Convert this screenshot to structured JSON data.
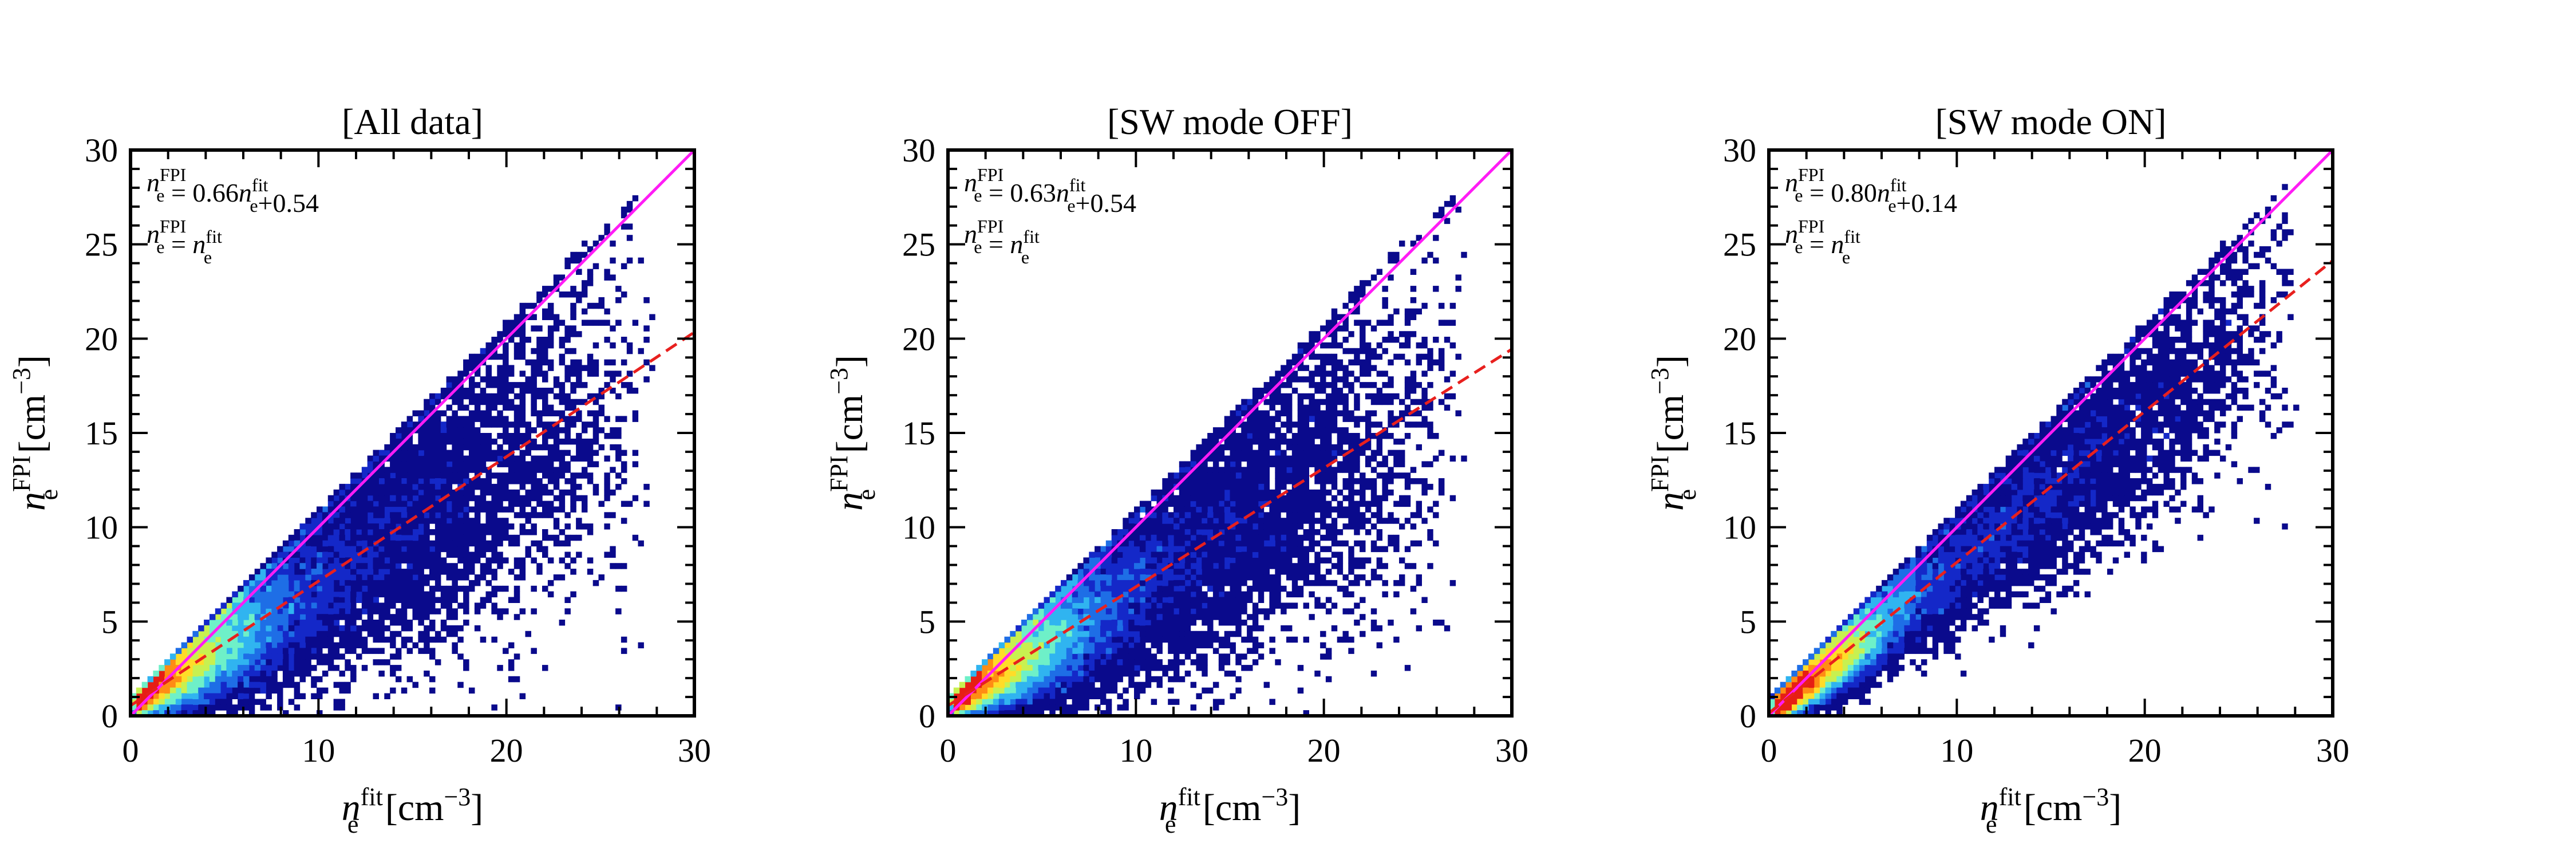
{
  "figure": {
    "xlabel": {
      "base": "n",
      "sub": "e",
      "sup": "fit",
      "unit_open": " [cm",
      "unit_exp": "−3",
      "unit_close": "]"
    },
    "ylabel": {
      "base": "n",
      "sub": "e",
      "sup": "FPI",
      "unit_open": " [cm",
      "unit_exp": "−3",
      "unit_close": "]"
    }
  },
  "colors": {
    "fit_line": "#e8201e",
    "identity_line": "#ff1cf5",
    "colormap": [
      "#0a0a8c",
      "#1428c8",
      "#1e6ee6",
      "#30b4f0",
      "#6ef0c8",
      "#c8f050",
      "#ffdc28",
      "#ff8c14",
      "#e61e14"
    ]
  },
  "chart_data": [
    {
      "type": "heatmap",
      "title": "[All data]",
      "xlim": [
        0,
        30
      ],
      "ylim": [
        0,
        30
      ],
      "xticks": [
        0,
        10,
        20,
        30
      ],
      "yticks": [
        0,
        5,
        10,
        15,
        20,
        25,
        30
      ],
      "fit": {
        "slope": 0.66,
        "intercept": 0.54,
        "label": {
          "lhs_sup": "FPI",
          "eq": " = 0.66",
          "rhs_sup": "fit",
          "tail": "+0.54"
        }
      },
      "identity": {
        "slope": 1,
        "intercept": 0,
        "label": {
          "lhs_sup": "FPI",
          "eq": " = ",
          "rhs_sup": "fit"
        }
      },
      "density": {
        "x_max": 28,
        "spread": 0.2,
        "seed": 11
      }
    },
    {
      "type": "heatmap",
      "title": "[SW mode OFF]",
      "xlim": [
        0,
        30
      ],
      "ylim": [
        0,
        30
      ],
      "xticks": [
        0,
        10,
        20,
        30
      ],
      "yticks": [
        0,
        5,
        10,
        15,
        20,
        25,
        30
      ],
      "fit": {
        "slope": 0.63,
        "intercept": 0.54,
        "label": {
          "lhs_sup": "FPI",
          "eq": " = 0.63",
          "rhs_sup": "fit",
          "tail": "+0.54"
        }
      },
      "identity": {
        "slope": 1,
        "intercept": 0,
        "label": {
          "lhs_sup": "FPI",
          "eq": " = ",
          "rhs_sup": "fit"
        }
      },
      "density": {
        "x_max": 27.5,
        "spread": 0.2,
        "seed": 23
      }
    },
    {
      "type": "heatmap",
      "title": "[SW mode ON]",
      "xlim": [
        0,
        30
      ],
      "ylim": [
        0,
        30
      ],
      "xticks": [
        0,
        10,
        20,
        30
      ],
      "yticks": [
        0,
        5,
        10,
        15,
        20,
        25,
        30
      ],
      "fit": {
        "slope": 0.8,
        "intercept": 0.14,
        "label": {
          "lhs_sup": "FPI",
          "eq": " = 0.80",
          "rhs_sup": "fit",
          "tail": "+0.14"
        }
      },
      "identity": {
        "slope": 1,
        "intercept": 0,
        "label": {
          "lhs_sup": "FPI",
          "eq": " = ",
          "rhs_sup": "fit"
        }
      },
      "density": {
        "x_max": 28,
        "spread": 0.13,
        "seed": 37
      }
    }
  ]
}
